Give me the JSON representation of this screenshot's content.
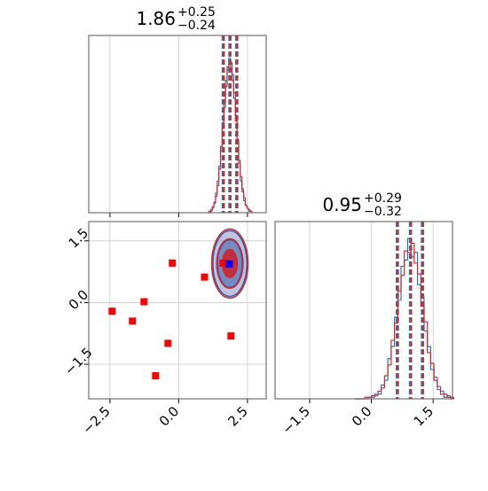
{
  "chart_data": [
    {
      "type": "histogram",
      "title": {
        "value": "1.86",
        "plus": "+0.25",
        "minus": "−0.24"
      },
      "bins": [
        1.1,
        1.16,
        1.22,
        1.28,
        1.34,
        1.4,
        1.46,
        1.52,
        1.58,
        1.64,
        1.7,
        1.76,
        1.82,
        1.88,
        1.94,
        2.0,
        2.06,
        2.12,
        2.18,
        2.24,
        2.3,
        2.36,
        2.42,
        2.48,
        2.54,
        2.6,
        2.66
      ],
      "series": [
        {
          "color": "#1f77b4",
          "values": [
            0,
            1,
            3,
            6,
            13,
            18,
            31,
            41,
            60,
            70,
            88,
            95,
            103,
            96,
            92,
            76,
            65,
            46,
            35,
            21,
            16,
            8,
            5,
            3,
            1,
            1
          ],
          "quantiles": [
            1.62,
            1.86,
            2.11
          ]
        },
        {
          "color": "#d62728",
          "values": [
            1,
            2,
            4,
            7,
            11,
            21,
            29,
            44,
            56,
            75,
            84,
            97,
            99,
            100,
            88,
            80,
            61,
            49,
            33,
            24,
            14,
            10,
            5,
            3,
            2,
            1
          ],
          "quantiles": [
            1.62,
            1.86,
            2.11
          ]
        }
      ],
      "xlim": [
        -3.27,
        3.18
      ],
      "xticks": [
        {
          "value": -2.5,
          "label": "−2.5"
        },
        {
          "value": 0,
          "label": "0.0"
        },
        2.5
      ],
      "ylim": [
        0,
        118
      ],
      "grid": true,
      "tick_labels": false
    },
    {
      "type": "corner2d",
      "xlim": [
        -3.27,
        3.18
      ],
      "xticks": [
        {
          "value": -2.5,
          "label": "−2.5"
        },
        {
          "value": 0,
          "label": "0.0"
        },
        2.5
      ],
      "ylim": [
        -2.34,
        1.97
      ],
      "yticks": [
        {
          "value": -1.5,
          "label": "−1.5"
        },
        {
          "value": 0,
          "label": "0.0"
        },
        1.5
      ],
      "grid": true,
      "contour_center": [
        1.86,
        0.95
      ],
      "contours": [
        {
          "color": "#3a5aa8",
          "rx": [
            0.62,
            0.45,
            0.25
          ],
          "ry": [
            0.8,
            0.58,
            0.32
          ]
        },
        {
          "color": "#d62728",
          "rx": [
            0.66,
            0.48,
            0.27
          ],
          "ry": [
            0.84,
            0.6,
            0.34
          ]
        }
      ],
      "points": {
        "color": "#ff0000",
        "x": [
          -0.23,
          -2.42,
          -1.68,
          -1.26,
          -0.39,
          -0.84,
          0.94,
          1.9,
          1.61
        ],
        "y": [
          0.96,
          -0.21,
          -0.45,
          0.02,
          -0.99,
          -1.78,
          0.62,
          -0.81,
          0.96
        ]
      },
      "truth": {
        "color": "#0000ff",
        "x": 1.84,
        "y": 0.94
      }
    },
    {
      "type": "histogram",
      "title": {
        "value": "0.95",
        "plus": "+0.29",
        "minus": "−0.32"
      },
      "bins": [
        -0.4,
        -0.32,
        -0.24,
        -0.16,
        -0.08,
        0.0,
        0.08,
        0.16,
        0.24,
        0.32,
        0.4,
        0.48,
        0.56,
        0.64,
        0.72,
        0.8,
        0.88,
        0.96,
        1.04,
        1.12,
        1.2,
        1.28,
        1.36,
        1.44,
        1.52,
        1.6,
        1.68,
        1.76,
        1.84,
        1.92,
        2.0
      ],
      "series": [
        {
          "color": "#1f77b4",
          "values": [
            0,
            0,
            0,
            0,
            1,
            1,
            3,
            3,
            9,
            12,
            26,
            34,
            53,
            64,
            86,
            90,
            104,
            92,
            95,
            74,
            66,
            44,
            34,
            19,
            14,
            6,
            5,
            1,
            2,
            0
          ],
          "quantiles": [
            0.63,
            0.95,
            1.24
          ]
        },
        {
          "color": "#d62728",
          "values": [
            0,
            0,
            0,
            1,
            1,
            2,
            2,
            5,
            7,
            15,
            22,
            38,
            49,
            70,
            80,
            96,
            95,
            101,
            88,
            81,
            60,
            50,
            30,
            23,
            12,
            8,
            3,
            3,
            1,
            1
          ],
          "quantiles": [
            0.63,
            0.95,
            1.24
          ]
        }
      ],
      "xlim": [
        -2.34,
        1.97
      ],
      "xticks": [
        {
          "value": -1.5,
          "label": "−1.5"
        },
        {
          "value": 0,
          "label": "0.0"
        },
        1.5
      ],
      "ylim": [
        0,
        115
      ],
      "grid": true,
      "tick_labels": true
    }
  ]
}
